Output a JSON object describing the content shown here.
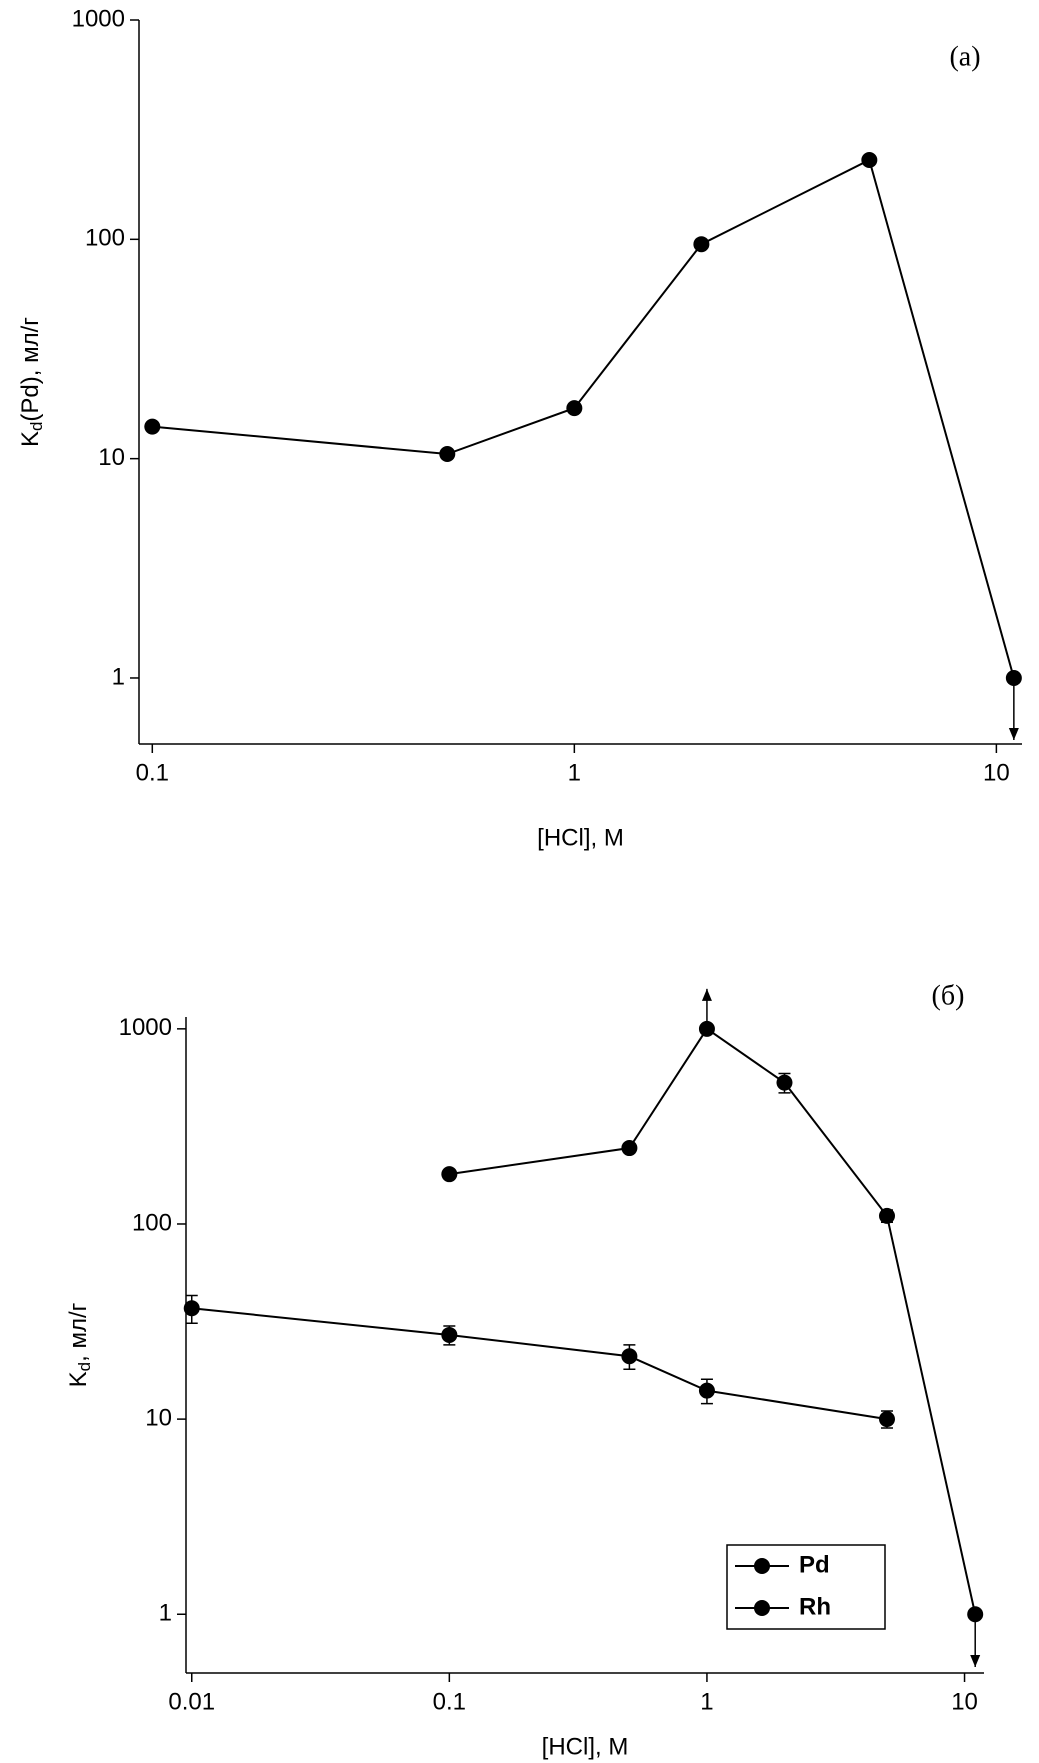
{
  "chart_data": [
    {
      "type": "line",
      "annotation": "(a)",
      "xlabel": "[HCl], M",
      "ylabel": [
        "K",
        "d",
        "(Pd), мл/г"
      ],
      "xscale": "log",
      "yscale": "log",
      "xlim": [
        0.093,
        11.5
      ],
      "ylim": [
        0.5,
        1000
      ],
      "xticks": [
        0.1,
        1,
        10
      ],
      "yticks": [
        1,
        10,
        100,
        1000
      ],
      "series": [
        {
          "name": "Pd",
          "color": "#000000",
          "x": [
            0.1,
            0.5,
            1,
            2,
            5,
            11
          ],
          "values": [
            14,
            10.5,
            17,
            95,
            230,
            1
          ],
          "limits": [
            null,
            null,
            null,
            null,
            null,
            "upper"
          ]
        }
      ]
    },
    {
      "type": "line",
      "annotation": "(б)",
      "xlabel": "[HCl], M",
      "ylabel": [
        "K",
        "d",
        ", мл/г"
      ],
      "xscale": "log",
      "yscale": "log",
      "xlim": [
        0.0095,
        11.9
      ],
      "ylim": [
        0.5,
        1150
      ],
      "xticks": [
        0.01,
        0.1,
        1,
        10
      ],
      "yticks": [
        1,
        10,
        100,
        1000
      ],
      "legend": "lower right",
      "series": [
        {
          "name": "Pd",
          "color": "#000000",
          "x": [
            0.01,
            0.1,
            0.5,
            1,
            5
          ],
          "values": [
            37,
            27,
            21,
            14,
            10
          ],
          "errors": [
            6,
            3,
            3,
            2,
            1
          ],
          "limits": [
            null,
            null,
            null,
            null,
            null
          ]
        },
        {
          "name": "Rh",
          "color": "#000000",
          "x": [
            0.1,
            0.5,
            1,
            2,
            5,
            11
          ],
          "values": [
            180,
            245,
            1000,
            530,
            110,
            1
          ],
          "errors": [
            null,
            null,
            null,
            60,
            8,
            null
          ],
          "limits": [
            null,
            null,
            "lower",
            null,
            null,
            "upper"
          ]
        }
      ]
    }
  ]
}
